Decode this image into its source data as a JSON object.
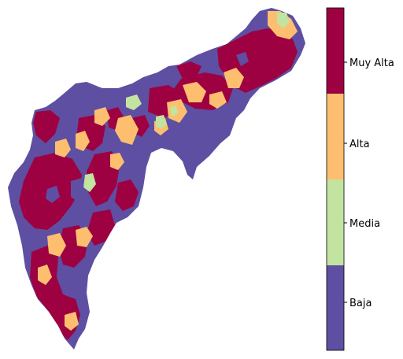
{
  "legend": {
    "classes": [
      {
        "label": "Muy Alta",
        "color": "#9e0142"
      },
      {
        "label": "Alta",
        "color": "#fdbf6f"
      },
      {
        "label": "Media",
        "color": "#c2e4a0"
      },
      {
        "label": "Baja",
        "color": "#5e4fa2"
      }
    ]
  },
  "colors": {
    "baja": "#5e4fa2",
    "media": "#c2e4a0",
    "alta": "#fdbf6f",
    "muy_alta": "#9e0142",
    "background": "#ffffff"
  }
}
